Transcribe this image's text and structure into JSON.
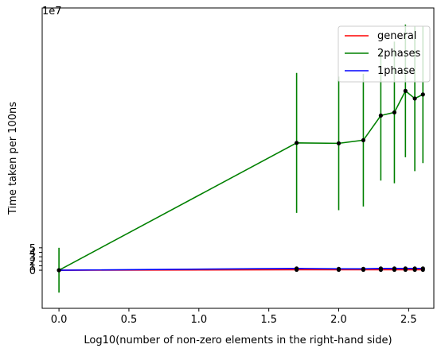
{
  "chart_data": {
    "type": "line",
    "xlabel": "Log10(number of non-zero elements in the right-hand side)",
    "ylabel": "Time taken per 100ns",
    "y_offset_label": "1e7",
    "xlim": [
      -0.12,
      2.68
    ],
    "ylim": [
      -8.5,
      58.5
    ],
    "y_unit_scale": 10000000,
    "x_ticks": [
      0.0,
      0.5,
      1.0,
      1.5,
      2.0,
      2.5
    ],
    "x_tick_labels": [
      "0.0",
      "0.5",
      "1.0",
      "1.5",
      "2.0",
      "2.5"
    ],
    "y_ticks": [
      0,
      1,
      2,
      3,
      4,
      5
    ],
    "y_tick_labels": [
      "0",
      "1",
      "2",
      "3",
      "4",
      "5"
    ],
    "grid": false,
    "legend_position": "top-right",
    "x": [
      0.0,
      1.699,
      2.0,
      2.176,
      2.301,
      2.398,
      2.477,
      2.544,
      2.602
    ],
    "series": [
      {
        "name": "general",
        "color": "#ff0000",
        "values": [
          0.0,
          0.1,
          0.1,
          0.1,
          0.1,
          0.1,
          0.1,
          0.1,
          0.1
        ],
        "errors": [
          0.0,
          0.0,
          0.0,
          0.0,
          0.0,
          0.0,
          0.0,
          0.0,
          0.0
        ]
      },
      {
        "name": "2phases",
        "color": "#008000",
        "values": [
          0.0,
          28.4,
          28.3,
          29.0,
          34.5,
          35.2,
          40.0,
          38.3,
          39.2
        ],
        "errors": [
          5.0,
          15.6,
          14.9,
          14.8,
          14.5,
          15.8,
          14.8,
          16.2,
          15.3
        ]
      },
      {
        "name": "1phase",
        "color": "#0000ff",
        "values": [
          0.0,
          0.4,
          0.3,
          0.3,
          0.4,
          0.4,
          0.4,
          0.4,
          0.4
        ],
        "errors": [
          0.0,
          0.0,
          0.0,
          0.0,
          0.0,
          0.0,
          0.0,
          0.0,
          0.0
        ]
      }
    ]
  }
}
